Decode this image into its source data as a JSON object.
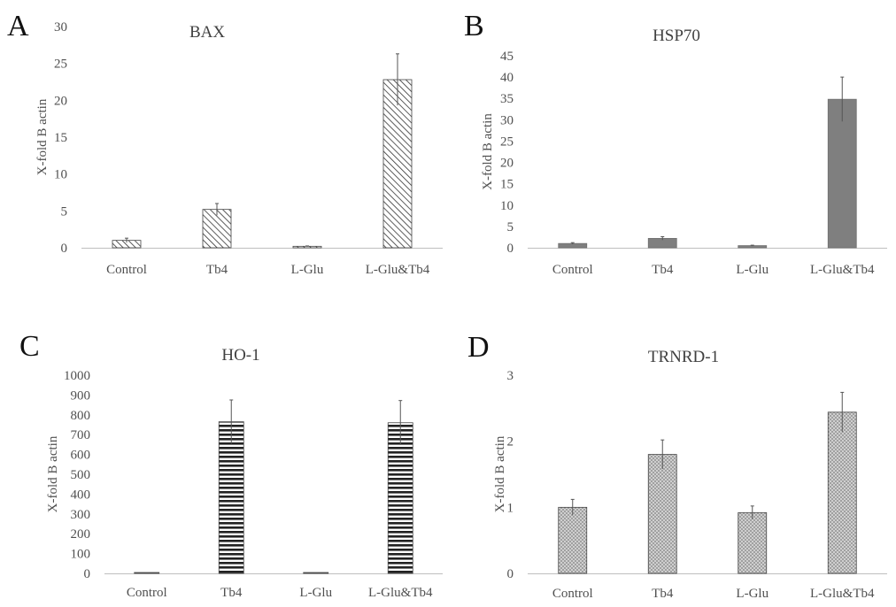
{
  "chart_data": [
    {
      "panel": "A",
      "type": "bar",
      "title": "BAX",
      "ylabel": "X-fold B actin",
      "categories": [
        "Control",
        "Tb4",
        "L-Glu",
        "L-Glu&Tb4"
      ],
      "values": [
        1.0,
        5.2,
        0.2,
        22.8
      ],
      "errors": [
        0.3,
        0.8,
        0.05,
        3.5
      ],
      "ylim": [
        0,
        30
      ],
      "yticks": [
        "0",
        "5",
        "10",
        "15",
        "20",
        "25",
        "30"
      ],
      "pattern": "diagonal"
    },
    {
      "panel": "B",
      "type": "bar",
      "title": "HSP70",
      "ylabel": "X-fold B actin",
      "categories": [
        "Control",
        "Tb4",
        "L-Glu",
        "L-Glu&Tb4"
      ],
      "values": [
        1.0,
        2.2,
        0.5,
        34.8
      ],
      "errors": [
        0.2,
        0.4,
        0.1,
        5.2
      ],
      "ylim": [
        0,
        45
      ],
      "yticks": [
        "0",
        "5",
        "10",
        "15",
        "20",
        "25",
        "30",
        "35",
        "40",
        "45"
      ],
      "pattern": "solid"
    },
    {
      "panel": "C",
      "type": "bar",
      "title": "HO-1",
      "ylabel": "X-fold B actin",
      "categories": [
        "Control",
        "Tb4",
        "L-Glu",
        "L-Glu&Tb4"
      ],
      "values": [
        1,
        765,
        1,
        760
      ],
      "errors": [
        0.5,
        110,
        0.5,
        112
      ],
      "ylim": [
        0,
        1000
      ],
      "yticks": [
        "0",
        "100",
        "200",
        "300",
        "400",
        "500",
        "600",
        "700",
        "800",
        "900",
        "1000"
      ],
      "pattern": "horizontal"
    },
    {
      "panel": "D",
      "type": "bar",
      "title": "TRNRD-1",
      "ylabel": "X-fold B actin",
      "categories": [
        "Control",
        "Tb4",
        "L-Glu",
        "L-Glu&Tb4"
      ],
      "values": [
        1.0,
        1.8,
        0.92,
        2.44
      ],
      "errors": [
        0.12,
        0.22,
        0.1,
        0.3
      ],
      "ylim": [
        0,
        3
      ],
      "yticks": [
        "0",
        "1",
        "2",
        "3"
      ],
      "pattern": "crosshatch"
    }
  ]
}
